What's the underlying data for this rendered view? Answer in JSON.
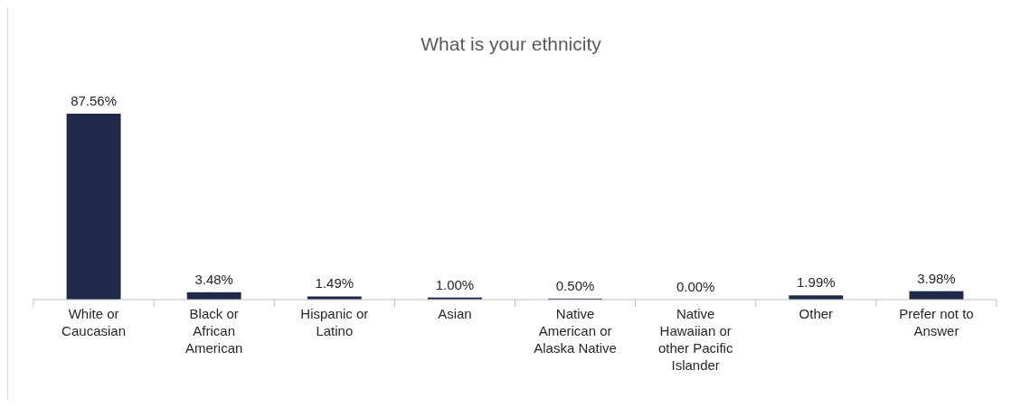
{
  "chart_data": {
    "type": "bar",
    "title": "What is your ethnicity",
    "categories": [
      "White or Caucasian",
      "Black or African American",
      "Hispanic or Latino",
      "Asian",
      "Native American or Alaska Native",
      "Native Hawaiian or other Pacific Islander",
      "Other",
      "Prefer not to Answer"
    ],
    "values": [
      87.56,
      3.48,
      1.49,
      1.0,
      0.5,
      0.0,
      1.99,
      3.98
    ],
    "value_labels": [
      "87.56%",
      "3.48%",
      "1.49%",
      "1.00%",
      "0.50%",
      "0.00%",
      "1.99%",
      "3.98%"
    ],
    "color": "#1f2a4a"
  }
}
